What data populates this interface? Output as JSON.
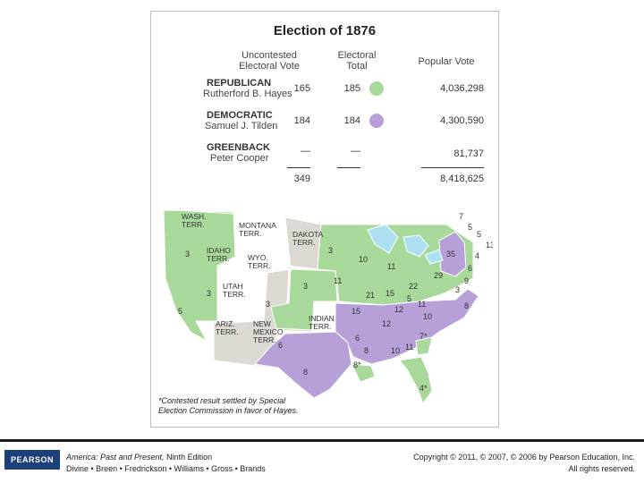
{
  "title": "Election of 1876",
  "headers": {
    "uncontested": "Uncontested Electoral Vote",
    "electoral_total": "Electoral Total",
    "popular_vote": "Popular Vote"
  },
  "parties": [
    {
      "party": "REPUBLICAN",
      "candidate": "Rutherford B. Hayes",
      "uncontested": "165",
      "total": "185",
      "popular": "4,036,298",
      "color": "#a8d89a"
    },
    {
      "party": "DEMOCRATIC",
      "candidate": "Samuel J. Tilden",
      "uncontested": "184",
      "total": "184",
      "popular": "4,300,590",
      "color": "#b7a0d8"
    },
    {
      "party": "GREENBACK",
      "candidate": "Peter Cooper",
      "uncontested": "—",
      "total": "—",
      "popular": "81,737"
    }
  ],
  "totals": {
    "uncontested": "349",
    "popular": "8,418,625"
  },
  "map": {
    "territories": [
      "WASH. TERR.",
      "MONTANA TERR.",
      "DAKOTA TERR.",
      "IDAHO TERR.",
      "WYO. TERR.",
      "UTAH TERR.",
      "ARIZ. TERR.",
      "NEW MEXICO TERR.",
      "INDIAN TERR."
    ],
    "votes": [
      "3",
      "3",
      "5",
      "3",
      "3",
      "3",
      "6",
      "11",
      "10",
      "11",
      "21",
      "15",
      "22",
      "29",
      "35",
      "15",
      "6",
      "12",
      "12",
      "5",
      "11",
      "10",
      "7*",
      "8*",
      "8",
      "10",
      "11",
      "8",
      "4*",
      "7",
      "5",
      "5",
      "13",
      "4",
      "6",
      "9",
      "3",
      "8"
    ]
  },
  "footnote": "*Contested result settled by Special Election Commission in favor of Hayes.",
  "footer": {
    "logo": "PEARSON",
    "book_title": "America: Past and Present,",
    "book_edition": " Ninth Edition",
    "authors": "Divine • Breen • Fredrickson • Williams • Gross • Brands",
    "copyright": "Copyright © 2011, © 2007, © 2006 by Pearson Education, Inc.",
    "rights": "All rights reserved."
  },
  "colors": {
    "republican": "#a8d89a",
    "democratic": "#b7a0d8",
    "territory": "#dcd9d2",
    "water": "#aee0f2"
  }
}
